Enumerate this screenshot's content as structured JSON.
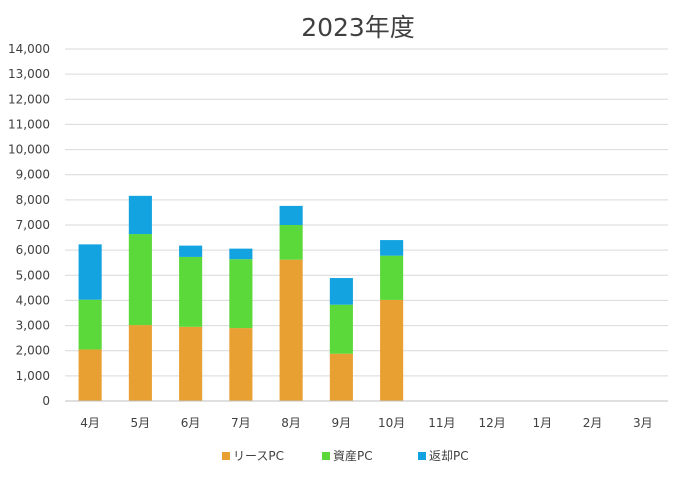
{
  "chart_data": {
    "type": "bar",
    "stacked": true,
    "title": "2023年度",
    "categories": [
      "4月",
      "5月",
      "6月",
      "7月",
      "8月",
      "9月",
      "10月",
      "11月",
      "12月",
      "1月",
      "2月",
      "3月"
    ],
    "series": [
      {
        "name": "リースPC",
        "color": "#E8A033",
        "values": [
          2050,
          3020,
          2950,
          2900,
          5620,
          1880,
          4020,
          null,
          null,
          null,
          null,
          null
        ]
      },
      {
        "name": "資産PC",
        "color": "#5BD83A",
        "values": [
          1980,
          3620,
          2780,
          2740,
          1380,
          1950,
          1760,
          null,
          null,
          null,
          null,
          null
        ]
      },
      {
        "name": "返却PC",
        "color": "#13A3E0",
        "values": [
          2200,
          1520,
          450,
          420,
          760,
          1060,
          620,
          null,
          null,
          null,
          null,
          null
        ]
      }
    ],
    "ylim": [
      0,
      14000
    ],
    "yticks": [
      0,
      1000,
      2000,
      3000,
      4000,
      5000,
      6000,
      7000,
      8000,
      9000,
      10000,
      11000,
      12000,
      13000,
      14000
    ],
    "ytick_labels": [
      "0",
      "1,000",
      "2,000",
      "3,000",
      "4,000",
      "5,000",
      "6,000",
      "7,000",
      "8,000",
      "9,000",
      "10,000",
      "11,000",
      "12,000",
      "13,000",
      "14,000"
    ],
    "grid": true,
    "legend_position": "bottom",
    "xlabel": "",
    "ylabel": ""
  }
}
